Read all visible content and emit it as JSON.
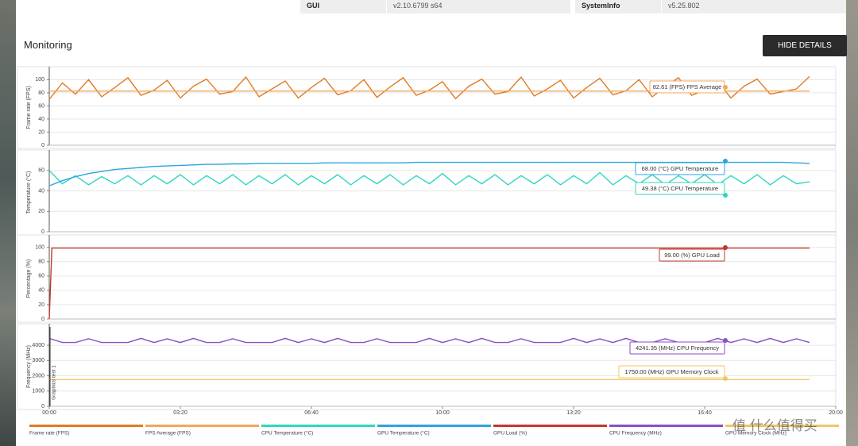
{
  "info": {
    "rows": [
      [
        "GUI",
        "v2.10.6799 s64"
      ],
      [
        "SystemInfo",
        "v5.25.802"
      ]
    ]
  },
  "header": {
    "title": "Monitoring",
    "button": "HIDE DETAILS"
  },
  "watermark": "值 什么值得买",
  "chart_data": [
    {
      "type": "line",
      "ylabel": "Frame rate (FPS)",
      "xlim": [
        0,
        1200
      ],
      "ylim": [
        0,
        115
      ],
      "yticks": [
        0,
        20,
        40,
        60,
        80,
        100
      ],
      "x": [
        0,
        20,
        40,
        60,
        80,
        100,
        120,
        140,
        160,
        180,
        200,
        220,
        240,
        260,
        280,
        300,
        320,
        340,
        360,
        380,
        400,
        420,
        440,
        460,
        480,
        500,
        520,
        540,
        560,
        580,
        600,
        620,
        640,
        660,
        680,
        700,
        720,
        740,
        760,
        780,
        800,
        820,
        840,
        860,
        880,
        900,
        920,
        940,
        960,
        980,
        1000,
        1020,
        1040,
        1060,
        1080,
        1100,
        1120,
        1140,
        1160
      ],
      "series": [
        {
          "name": "Frame rate (FPS)",
          "color": "#e07b24",
          "values": [
            70,
            95,
            78,
            100,
            74,
            88,
            103,
            76,
            84,
            99,
            72,
            90,
            101,
            78,
            82,
            104,
            74,
            86,
            98,
            72,
            88,
            102,
            77,
            83,
            100,
            73,
            89,
            103,
            76,
            84,
            97,
            71,
            90,
            101,
            78,
            82,
            104,
            75,
            86,
            99,
            72,
            88,
            102,
            77,
            83,
            100,
            74,
            89,
            103,
            76,
            84,
            97,
            72,
            90,
            101,
            78,
            82,
            86,
            105
          ]
        },
        {
          "name": "FPS Average (FPS)",
          "color": "#f0a85e",
          "x": [
            0,
            1160
          ],
          "values": [
            82.61,
            82.61
          ]
        }
      ],
      "annotations": [
        "82.61 (FPS) FPS Average"
      ]
    },
    {
      "type": "line",
      "ylabel": "Temperature (°C)",
      "xlim": [
        0,
        1200
      ],
      "ylim": [
        0,
        77
      ],
      "yticks": [
        0,
        20,
        40,
        60
      ],
      "x": [
        0,
        20,
        40,
        60,
        80,
        100,
        120,
        140,
        160,
        180,
        200,
        220,
        240,
        260,
        280,
        300,
        320,
        340,
        360,
        380,
        400,
        420,
        440,
        460,
        480,
        500,
        520,
        540,
        560,
        580,
        600,
        620,
        640,
        660,
        680,
        700,
        720,
        740,
        760,
        780,
        800,
        820,
        840,
        860,
        880,
        900,
        920,
        940,
        960,
        980,
        1000,
        1020,
        1040,
        1060,
        1080,
        1100,
        1120,
        1140,
        1160
      ],
      "series": [
        {
          "name": "CPU Temperature (°C)",
          "color": "#2fd6c0",
          "values": [
            60,
            47,
            55,
            46,
            54,
            47,
            55,
            46,
            55,
            47,
            56,
            46,
            55,
            47,
            56,
            46,
            55,
            47,
            56,
            46,
            55,
            47,
            56,
            46,
            55,
            47,
            56,
            46,
            55,
            47,
            57,
            46,
            55,
            47,
            56,
            46,
            55,
            47,
            56,
            46,
            55,
            47,
            58,
            46,
            55,
            47,
            56,
            46,
            55,
            47,
            56,
            46,
            55,
            47,
            56,
            46,
            55,
            47,
            49
          ]
        },
        {
          "name": "GPU Temperature (°C)",
          "color": "#2aa5df",
          "values": [
            45,
            50,
            54,
            57,
            59,
            61,
            62,
            63,
            64,
            64.5,
            65,
            65.5,
            66,
            66,
            66.5,
            66.5,
            67,
            67,
            67,
            67,
            67,
            67.5,
            67.5,
            67.5,
            67.5,
            67.5,
            67.5,
            67.5,
            68,
            68,
            68,
            68,
            68,
            68,
            68,
            68,
            68,
            68,
            68,
            68,
            68,
            68,
            68,
            68,
            68,
            68,
            68,
            68,
            68,
            68,
            68,
            68,
            68,
            68,
            68,
            68,
            68,
            67.5,
            67
          ]
        }
      ],
      "annotations": [
        "68.00 (°C) GPU Temperature",
        "49.38 (°C) CPU Temperature"
      ]
    },
    {
      "type": "line",
      "ylabel": "Percentage (%)",
      "xlim": [
        0,
        1200
      ],
      "ylim": [
        0,
        113
      ],
      "yticks": [
        0,
        20,
        40,
        60,
        80,
        100
      ],
      "x": [
        0,
        4,
        1160
      ],
      "series": [
        {
          "name": "GPU Load (%)",
          "color": "#c0392b",
          "values": [
            0,
            99,
            99
          ]
        }
      ],
      "annotations": [
        "99.00 (%) GPU Load"
      ]
    },
    {
      "type": "line",
      "ylabel": "Frequency (MHz)",
      "xlim": [
        0,
        1200
      ],
      "ylim": [
        0,
        5200
      ],
      "yticks": [
        0,
        1000,
        2000,
        3000,
        4000
      ],
      "xticks": [
        {
          "value": 0,
          "label": "00:00"
        },
        {
          "value": 200,
          "label": "03:20"
        },
        {
          "value": 400,
          "label": "06:40"
        },
        {
          "value": 600,
          "label": "10:00"
        },
        {
          "value": 800,
          "label": "13:20"
        },
        {
          "value": 1000,
          "label": "16:40"
        },
        {
          "value": 1200,
          "label": "20:00"
        }
      ],
      "marker_label": "Graphics test 1",
      "x": [
        0,
        20,
        40,
        60,
        80,
        100,
        120,
        140,
        160,
        180,
        200,
        220,
        240,
        260,
        280,
        300,
        320,
        340,
        360,
        380,
        400,
        420,
        440,
        460,
        480,
        500,
        520,
        540,
        560,
        580,
        600,
        620,
        640,
        660,
        680,
        700,
        720,
        740,
        760,
        780,
        800,
        820,
        840,
        860,
        880,
        900,
        920,
        940,
        960,
        980,
        1000,
        1020,
        1040,
        1060,
        1080,
        1100,
        1120,
        1140,
        1160
      ],
      "series": [
        {
          "name": "CPU Frequency (MHz)",
          "color": "#8a4fc6",
          "values": [
            4450,
            4180,
            4180,
            4430,
            4180,
            4180,
            4180,
            4450,
            4180,
            4420,
            4180,
            4450,
            4180,
            4180,
            4430,
            4180,
            4180,
            4180,
            4450,
            4180,
            4420,
            4180,
            4450,
            4180,
            4180,
            4430,
            4180,
            4180,
            4180,
            4450,
            4180,
            4420,
            4180,
            4450,
            4180,
            4180,
            4430,
            4180,
            4180,
            4180,
            4450,
            4180,
            4420,
            4180,
            4450,
            4180,
            4180,
            4430,
            4180,
            4180,
            4180,
            4450,
            4180,
            4420,
            4180,
            4450,
            4180,
            4430,
            4180
          ]
        },
        {
          "name": "GPU Memory Clock (MHz)",
          "color": "#f0c766",
          "x": [
            0,
            1160
          ],
          "values": [
            1750,
            1750
          ]
        }
      ],
      "annotations": [
        "4241.35 (MHz) CPU Frequency",
        "1750.00 (MHz) GPU Memory Clock"
      ]
    }
  ]
}
